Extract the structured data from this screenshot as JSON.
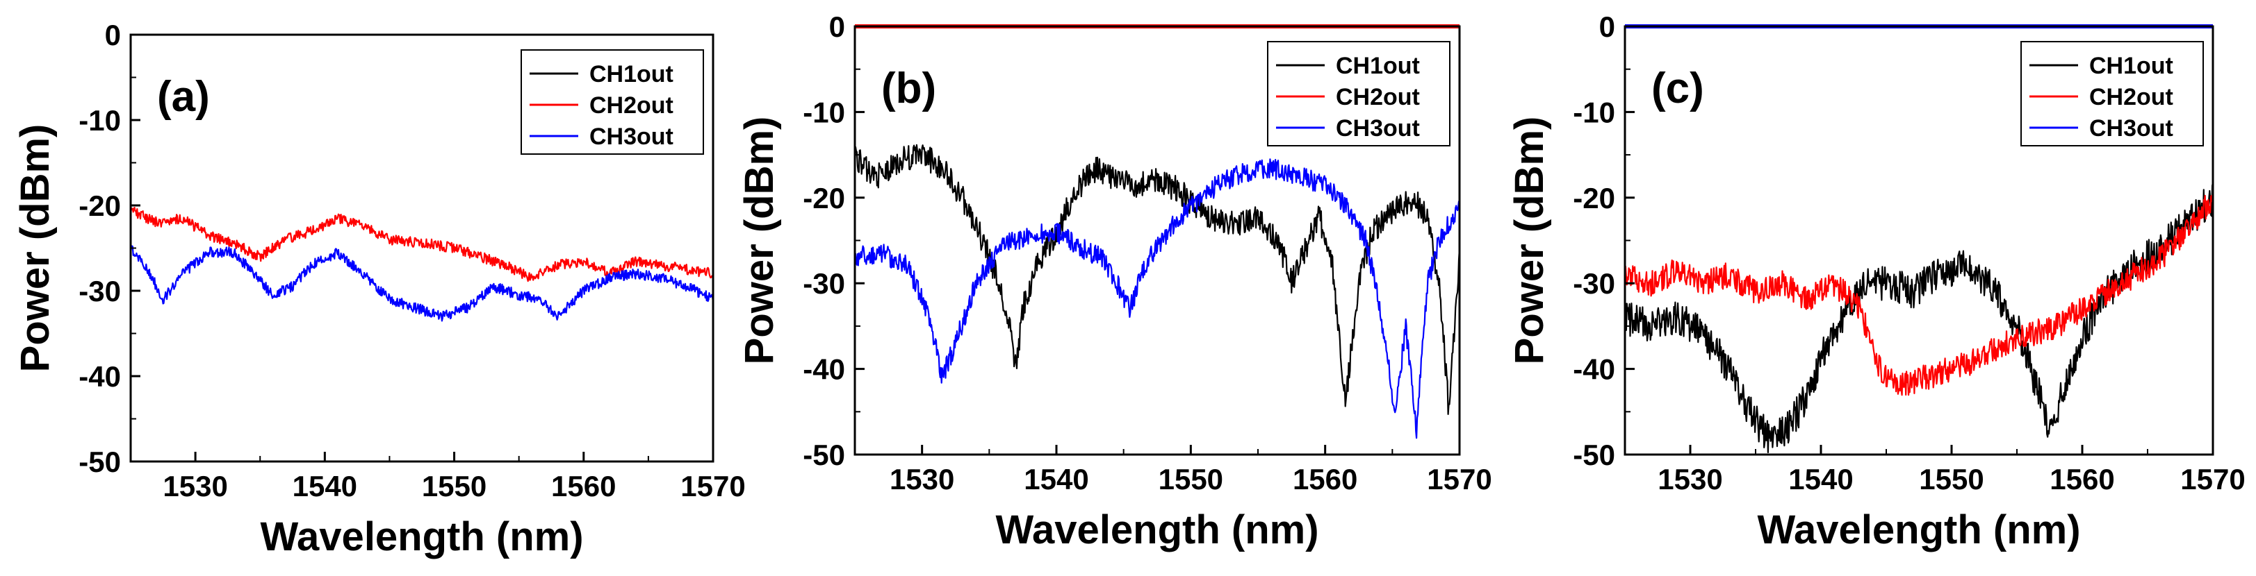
{
  "chart_data": [
    {
      "type": "line",
      "panel_label": "(a)",
      "xlabel": "Wavelength (nm)",
      "ylabel": "Power (dBm)",
      "xlim": [
        1525,
        1570
      ],
      "ylim": [
        -50,
        0
      ],
      "x_ticks": [
        1530,
        1540,
        1550,
        1560,
        1570
      ],
      "y_ticks": [
        0,
        -10,
        -20,
        -30,
        -40,
        -50
      ],
      "legend_position": "top-right",
      "series": [
        {
          "name": "CH1out",
          "color": "#000000",
          "noise": 0,
          "points": []
        },
        {
          "name": "CH2out",
          "color": "#ff0000",
          "noise": 0.6,
          "points": [
            [
              1525,
              -20.5
            ],
            [
              1527,
              -22
            ],
            [
              1529,
              -21.5
            ],
            [
              1531,
              -23.5
            ],
            [
              1533,
              -24.5
            ],
            [
              1535,
              -26
            ],
            [
              1537,
              -24
            ],
            [
              1539,
              -23
            ],
            [
              1541,
              -21.5
            ],
            [
              1543,
              -22.5
            ],
            [
              1545,
              -24
            ],
            [
              1548,
              -24.5
            ],
            [
              1550,
              -25
            ],
            [
              1552,
              -26
            ],
            [
              1554,
              -27
            ],
            [
              1556,
              -28.5
            ],
            [
              1558,
              -27
            ],
            [
              1560,
              -26.5
            ],
            [
              1562,
              -28
            ],
            [
              1564,
              -26.5
            ],
            [
              1566,
              -27
            ],
            [
              1568,
              -27.5
            ],
            [
              1570,
              -28
            ]
          ]
        },
        {
          "name": "CH3out",
          "color": "#0000ff",
          "noise": 0.6,
          "points": [
            [
              1525,
              -25
            ],
            [
              1526.5,
              -28
            ],
            [
              1527.5,
              -31
            ],
            [
              1529,
              -28
            ],
            [
              1531,
              -25.5
            ],
            [
              1533,
              -25.5
            ],
            [
              1534.5,
              -28
            ],
            [
              1536,
              -30.5
            ],
            [
              1537.5,
              -29.5
            ],
            [
              1539,
              -27
            ],
            [
              1541,
              -25.5
            ],
            [
              1543,
              -28
            ],
            [
              1545,
              -31
            ],
            [
              1547,
              -32
            ],
            [
              1549,
              -33
            ],
            [
              1551,
              -32
            ],
            [
              1553,
              -29.5
            ],
            [
              1555,
              -30.5
            ],
            [
              1556.5,
              -31
            ],
            [
              1558,
              -33
            ],
            [
              1560,
              -30
            ],
            [
              1562,
              -28.5
            ],
            [
              1564,
              -28
            ],
            [
              1566,
              -28.5
            ],
            [
              1568,
              -29.5
            ],
            [
              1570,
              -31
            ]
          ]
        }
      ]
    },
    {
      "type": "line",
      "panel_label": "(b)",
      "xlabel": "Wavelength (nm)",
      "ylabel": "Power (dBm)",
      "xlim": [
        1525,
        1570
      ],
      "ylim": [
        -50,
        0
      ],
      "x_ticks": [
        1530,
        1540,
        1550,
        1560,
        1570
      ],
      "y_ticks": [
        0,
        -10,
        -20,
        -30,
        -40,
        -50
      ],
      "legend_position": "top-right",
      "series": [
        {
          "name": "CH1out",
          "color": "#000000",
          "noise": 1.5,
          "points": [
            [
              1525,
              -15
            ],
            [
              1526,
              -17
            ],
            [
              1527,
              -17.5
            ],
            [
              1528.5,
              -15.5
            ],
            [
              1530,
              -15
            ],
            [
              1531.5,
              -16.5
            ],
            [
              1533,
              -20
            ],
            [
              1534.5,
              -25
            ],
            [
              1535.5,
              -29
            ],
            [
              1536.5,
              -35
            ],
            [
              1537,
              -40
            ],
            [
              1537.5,
              -33
            ],
            [
              1538.5,
              -28
            ],
            [
              1540,
              -24
            ],
            [
              1541.5,
              -19
            ],
            [
              1543,
              -16.5
            ],
            [
              1544.5,
              -18
            ],
            [
              1546,
              -18.5
            ],
            [
              1547.5,
              -18
            ],
            [
              1549,
              -19
            ],
            [
              1551,
              -22
            ],
            [
              1553,
              -23
            ],
            [
              1555,
              -22.5
            ],
            [
              1556.5,
              -25
            ],
            [
              1557.5,
              -30
            ],
            [
              1558.5,
              -26
            ],
            [
              1559.5,
              -22
            ],
            [
              1560.5,
              -27
            ],
            [
              1561.5,
              -44
            ],
            [
              1562.5,
              -30
            ],
            [
              1563.5,
              -24
            ],
            [
              1565,
              -21.5
            ],
            [
              1566.5,
              -20
            ],
            [
              1567.5,
              -22
            ],
            [
              1568.5,
              -30
            ],
            [
              1569.2,
              -45
            ],
            [
              1570,
              -27
            ]
          ]
        },
        {
          "name": "CH2out",
          "color": "#ff0000",
          "noise": 0,
          "points": [
            [
              1525,
              0
            ],
            [
              1570,
              0
            ]
          ]
        },
        {
          "name": "CH3out",
          "color": "#0000ff",
          "noise": 1.2,
          "points": [
            [
              1525,
              -27
            ],
            [
              1527,
              -26.5
            ],
            [
              1529,
              -28
            ],
            [
              1530.5,
              -34
            ],
            [
              1531.5,
              -41
            ],
            [
              1532.5,
              -37
            ],
            [
              1534,
              -30
            ],
            [
              1536,
              -25.5
            ],
            [
              1538,
              -24.5
            ],
            [
              1540,
              -24
            ],
            [
              1542,
              -26
            ],
            [
              1543.5,
              -27
            ],
            [
              1544.5,
              -30
            ],
            [
              1545.5,
              -33
            ],
            [
              1546.5,
              -28
            ],
            [
              1548,
              -24.5
            ],
            [
              1550,
              -21
            ],
            [
              1552,
              -18.5
            ],
            [
              1554,
              -17
            ],
            [
              1556,
              -16.5
            ],
            [
              1558,
              -17.5
            ],
            [
              1560,
              -18.5
            ],
            [
              1561.5,
              -21
            ],
            [
              1563,
              -25
            ],
            [
              1564,
              -32
            ],
            [
              1565.2,
              -45
            ],
            [
              1566,
              -35
            ],
            [
              1566.8,
              -47
            ],
            [
              1567.6,
              -30
            ],
            [
              1568.5,
              -25
            ],
            [
              1570,
              -21
            ]
          ]
        }
      ]
    },
    {
      "type": "line",
      "panel_label": "(c)",
      "xlabel": "Wavelength (nm)",
      "ylabel": "Power (dBm)",
      "xlim": [
        1525,
        1570
      ],
      "ylim": [
        -50,
        0
      ],
      "x_ticks": [
        1530,
        1540,
        1550,
        1560,
        1570
      ],
      "y_ticks": [
        0,
        -10,
        -20,
        -30,
        -40,
        -50
      ],
      "legend_position": "top-right",
      "series": [
        {
          "name": "CH1out",
          "color": "#000000",
          "noise": 2,
          "points": [
            [
              1525,
              -34
            ],
            [
              1527,
              -35
            ],
            [
              1529,
              -34
            ],
            [
              1531,
              -36
            ],
            [
              1533,
              -40
            ],
            [
              1534.5,
              -45
            ],
            [
              1536,
              -48
            ],
            [
              1537.5,
              -47
            ],
            [
              1539,
              -43
            ],
            [
              1540.5,
              -37
            ],
            [
              1542,
              -33
            ],
            [
              1543.5,
              -30
            ],
            [
              1545,
              -30
            ],
            [
              1547,
              -31
            ],
            [
              1549,
              -29
            ],
            [
              1551,
              -28
            ],
            [
              1553,
              -30
            ],
            [
              1555,
              -35
            ],
            [
              1556.5,
              -42
            ],
            [
              1557.5,
              -47
            ],
            [
              1558.5,
              -43
            ],
            [
              1560,
              -36
            ],
            [
              1562,
              -31
            ],
            [
              1564,
              -28
            ],
            [
              1566,
              -26
            ],
            [
              1568,
              -23
            ],
            [
              1570,
              -20
            ]
          ]
        },
        {
          "name": "CH2out",
          "color": "#ff0000",
          "noise": 1.5,
          "points": [
            [
              1525,
              -29
            ],
            [
              1527,
              -30
            ],
            [
              1529,
              -28.5
            ],
            [
              1531,
              -30
            ],
            [
              1533,
              -29
            ],
            [
              1535,
              -31
            ],
            [
              1537,
              -30
            ],
            [
              1539,
              -32
            ],
            [
              1541,
              -30
            ],
            [
              1543,
              -33
            ],
            [
              1544.5,
              -40
            ],
            [
              1546,
              -42
            ],
            [
              1548,
              -41
            ],
            [
              1550,
              -40
            ],
            [
              1552,
              -39
            ],
            [
              1554,
              -37
            ],
            [
              1556,
              -36
            ],
            [
              1558,
              -35
            ],
            [
              1560,
              -33
            ],
            [
              1562,
              -31
            ],
            [
              1564,
              -29
            ],
            [
              1566,
              -27
            ],
            [
              1568,
              -24
            ],
            [
              1570,
              -20
            ]
          ]
        },
        {
          "name": "CH3out",
          "color": "#0000ff",
          "noise": 0,
          "points": [
            [
              1525,
              0
            ],
            [
              1570,
              0
            ]
          ]
        }
      ]
    }
  ]
}
